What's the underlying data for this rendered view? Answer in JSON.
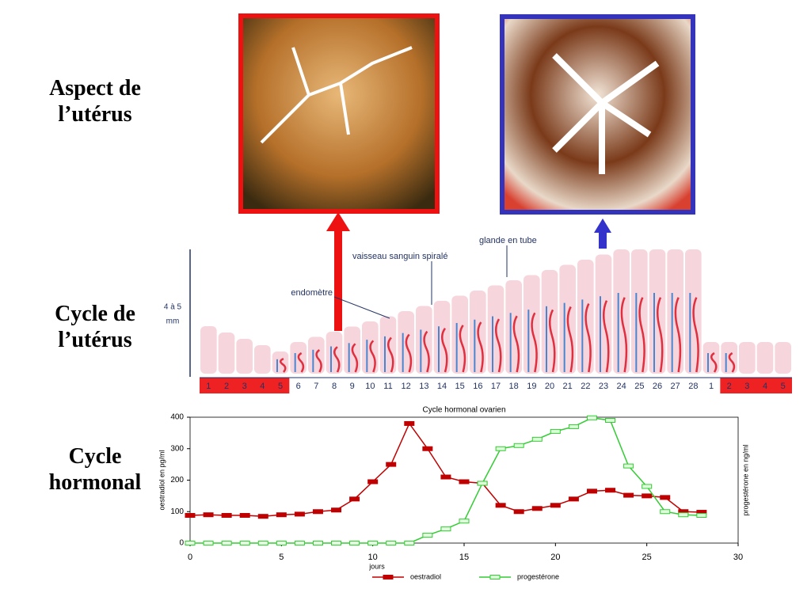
{
  "labels": {
    "aspect": [
      "Aspect de",
      "l’utérus"
    ],
    "cycle_uterus": [
      "Cycle de",
      "l’utérus"
    ],
    "cycle_hormonal": [
      "Cycle",
      "hormonal"
    ]
  },
  "diagram": {
    "height_label": [
      "4 à 5",
      "mm"
    ],
    "endometre": "endomètre",
    "vaisseau": "vaisseau sanguin spiralé",
    "glande": "glande en tube",
    "days": [
      "1",
      "2",
      "3",
      "4",
      "5",
      "6",
      "7",
      "8",
      "9",
      "10",
      "11",
      "12",
      "13",
      "14",
      "15",
      "16",
      "17",
      "18",
      "19",
      "20",
      "21",
      "22",
      "23",
      "24",
      "25",
      "26",
      "27",
      "28",
      "1",
      "2",
      "3",
      "4",
      "5"
    ]
  },
  "chart_data": {
    "type": "line",
    "title": "Cycle hormonal ovarien",
    "x_label": "jours",
    "y_label": "oestradiol en pg/ml",
    "y2_label": "progestérone en ng/ml",
    "x": [
      0,
      1,
      2,
      3,
      4,
      5,
      6,
      7,
      8,
      9,
      10,
      11,
      12,
      13,
      14,
      15,
      16,
      17,
      18,
      19,
      20,
      21,
      22,
      23,
      24,
      25,
      26,
      27,
      28
    ],
    "series": [
      {
        "name": "oestradiol",
        "color": "#c00000",
        "values": [
          88,
          90,
          88,
          88,
          85,
          90,
          92,
          100,
          105,
          140,
          195,
          250,
          380,
          300,
          210,
          195,
          190,
          120,
          100,
          110,
          120,
          140,
          165,
          168,
          152,
          150,
          145,
          100,
          98
        ]
      },
      {
        "name": "progestérone",
        "color": "#33cc33",
        "values": [
          0,
          0,
          0,
          0,
          0,
          0,
          0,
          0,
          0,
          0,
          0,
          0,
          0,
          25,
          45,
          70,
          190,
          300,
          310,
          330,
          355,
          370,
          398,
          390,
          245,
          180,
          100,
          90,
          88
        ]
      }
    ],
    "xlim": [
      0,
      30
    ],
    "xticks": [
      0,
      5,
      10,
      15,
      20,
      25,
      30
    ],
    "ylim": [
      0,
      400
    ],
    "yticks": [
      0,
      100,
      200,
      300,
      400
    ],
    "legend": "bottom"
  }
}
